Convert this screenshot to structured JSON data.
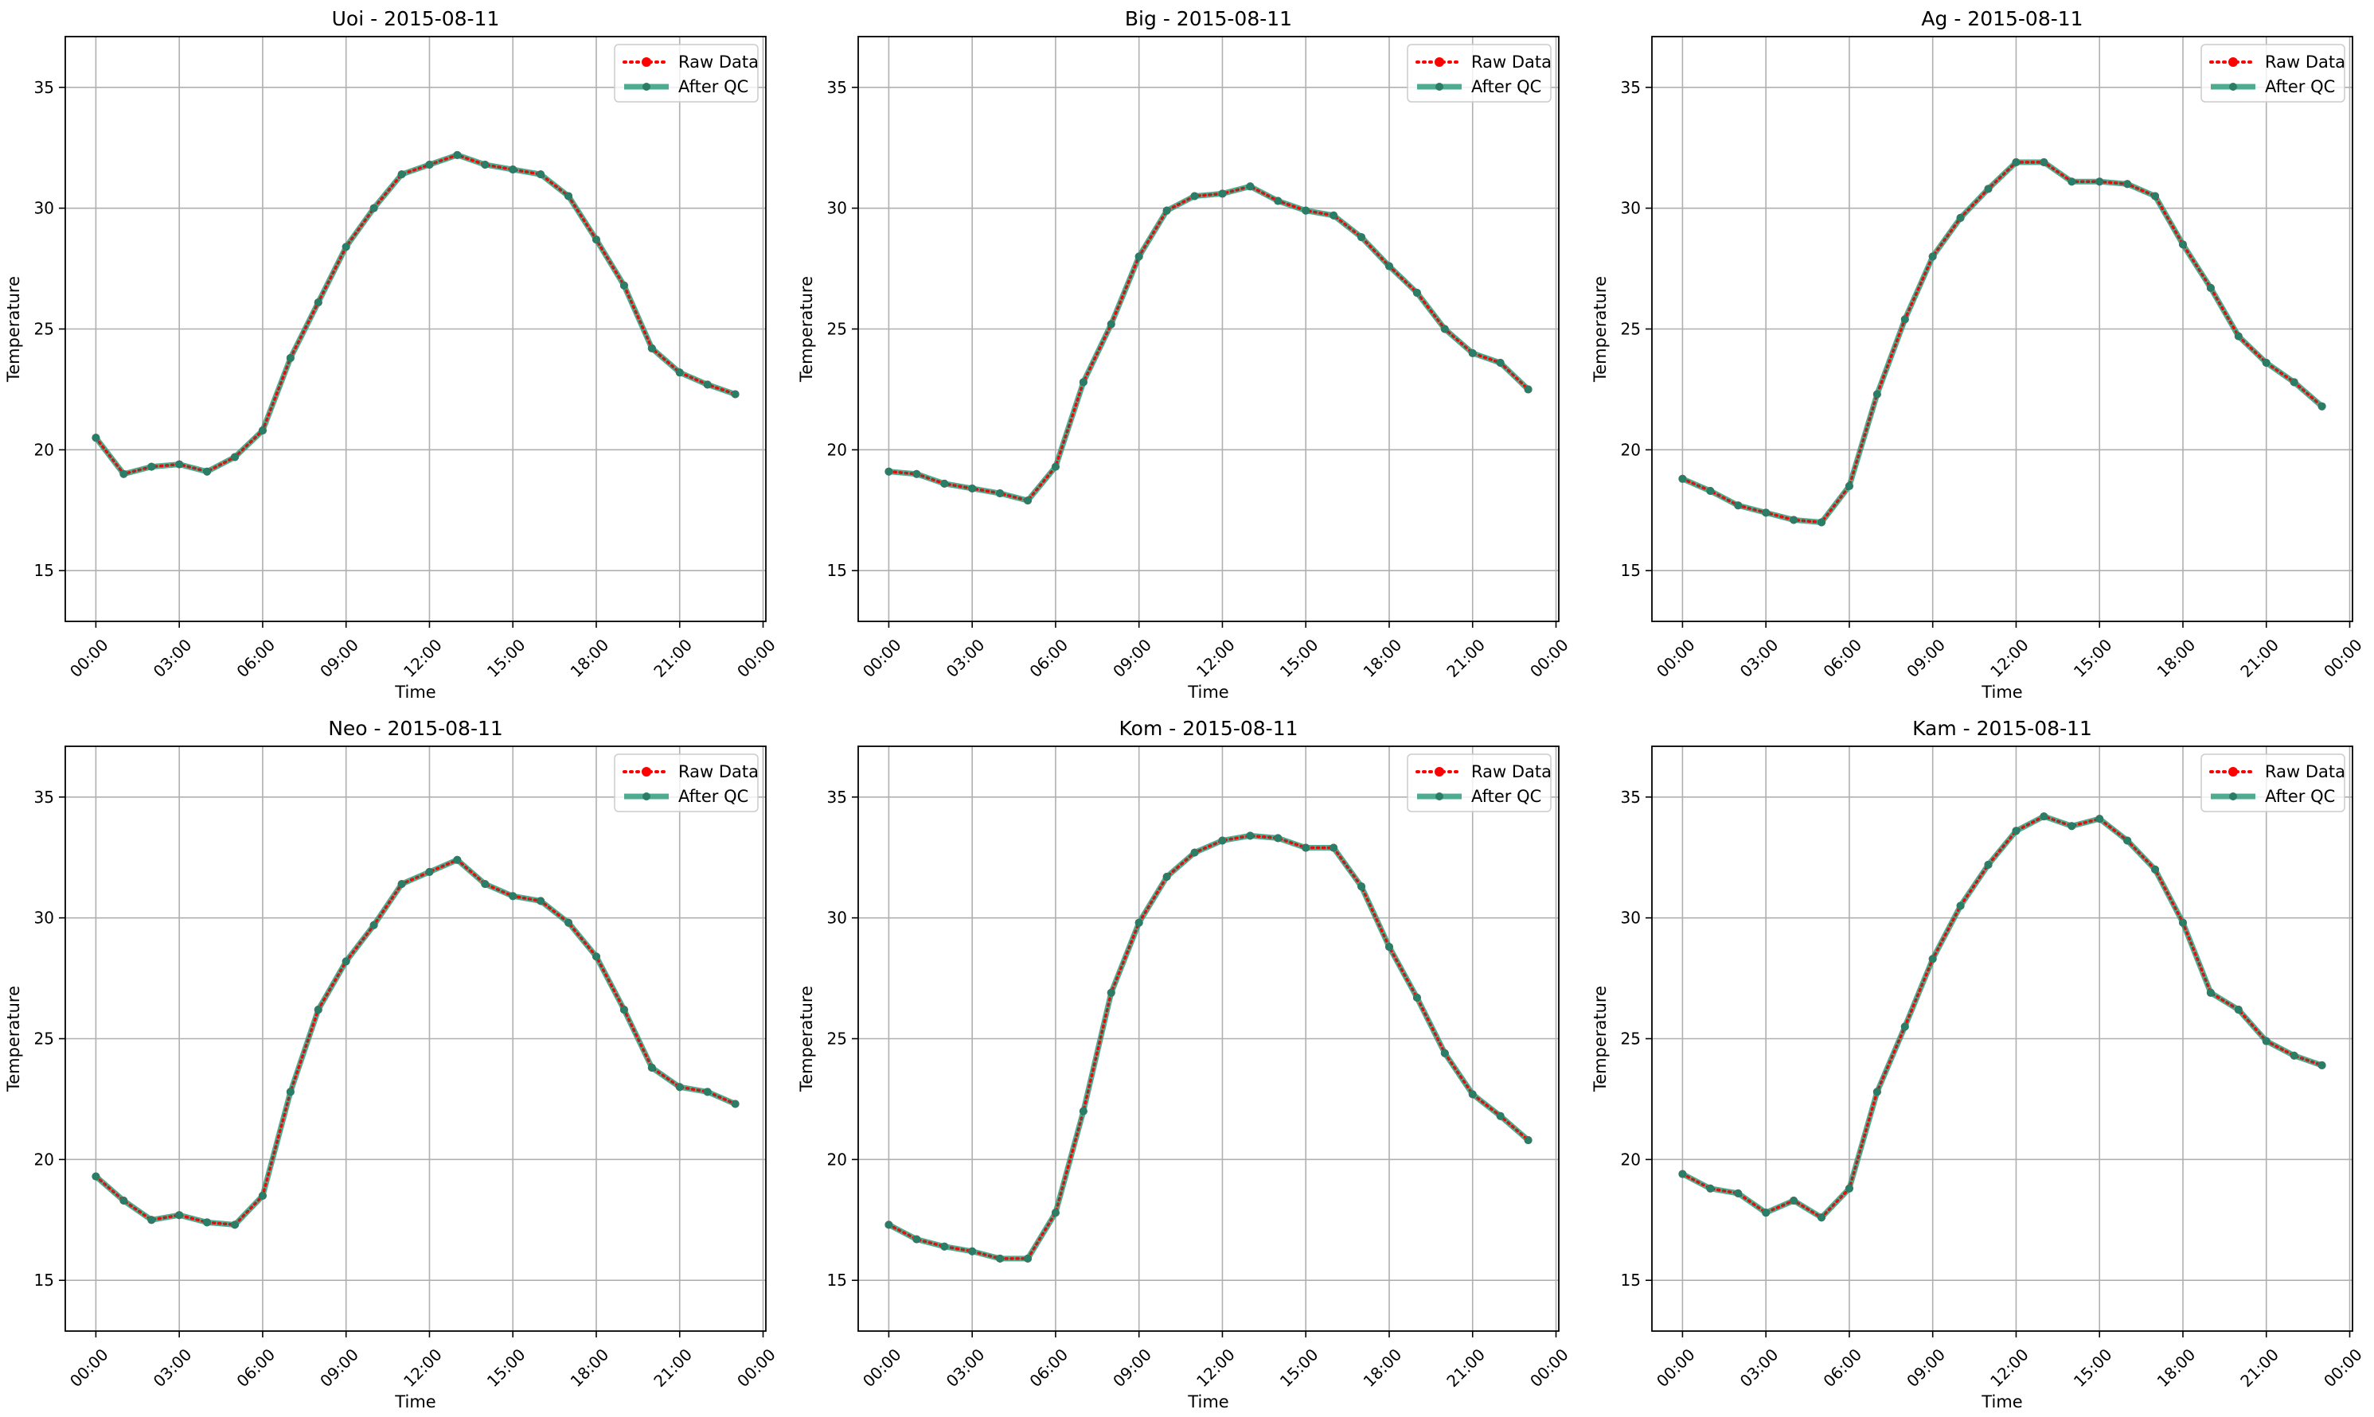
{
  "figure": {
    "background": "#ffffff"
  },
  "colors": {
    "raw": "#ff0000",
    "qc": "#2f9e7d",
    "grid": "#b0b0b0",
    "axis": "#000000"
  },
  "legend": {
    "placement": "top-right",
    "raw_label": "Raw Data",
    "qc_label": "After QC"
  },
  "chart_data": [
    {
      "type": "line",
      "title": "Uoi - 2015-08-11",
      "xlabel": "Time",
      "ylabel": "Temperature",
      "xlim": [
        -1.1,
        24.1
      ],
      "ylim": [
        12.9,
        37.1
      ],
      "x_ticks": [
        0,
        3,
        6,
        9,
        12,
        15,
        18,
        21,
        24
      ],
      "x_tick_labels": [
        "00:00",
        "03:00",
        "06:00",
        "09:00",
        "12:00",
        "15:00",
        "18:00",
        "21:00",
        "00:00"
      ],
      "y_ticks": [
        15,
        20,
        25,
        30,
        35
      ],
      "y_tick_labels": [
        "15",
        "20",
        "25",
        "30",
        "35"
      ],
      "grid": true,
      "x": [
        0,
        1,
        2,
        3,
        4,
        5,
        6,
        7,
        8,
        9,
        10,
        11,
        12,
        13,
        14,
        15,
        16,
        17,
        18,
        19,
        20,
        21,
        22,
        23
      ],
      "series": [
        {
          "name": "Raw Data",
          "values": [
            20.5,
            19.0,
            19.3,
            19.4,
            19.1,
            19.7,
            20.8,
            23.8,
            26.1,
            28.4,
            30.0,
            31.4,
            31.8,
            32.2,
            31.8,
            31.6,
            31.4,
            30.5,
            28.7,
            26.8,
            24.2,
            23.2,
            22.7,
            22.3
          ]
        },
        {
          "name": "After QC",
          "values": [
            20.5,
            19.0,
            19.3,
            19.4,
            19.1,
            19.7,
            20.8,
            23.8,
            26.1,
            28.4,
            30.0,
            31.4,
            31.8,
            32.2,
            31.8,
            31.6,
            31.4,
            30.5,
            28.7,
            26.8,
            24.2,
            23.2,
            22.7,
            22.3
          ]
        }
      ]
    },
    {
      "type": "line",
      "title": "Big - 2015-08-11",
      "xlabel": "Time",
      "ylabel": "Temperature",
      "xlim": [
        -1.1,
        24.1
      ],
      "ylim": [
        12.9,
        37.1
      ],
      "x_ticks": [
        0,
        3,
        6,
        9,
        12,
        15,
        18,
        21,
        24
      ],
      "x_tick_labels": [
        "00:00",
        "03:00",
        "06:00",
        "09:00",
        "12:00",
        "15:00",
        "18:00",
        "21:00",
        "00:00"
      ],
      "y_ticks": [
        15,
        20,
        25,
        30,
        35
      ],
      "y_tick_labels": [
        "15",
        "20",
        "25",
        "30",
        "35"
      ],
      "grid": true,
      "x": [
        0,
        1,
        2,
        3,
        4,
        5,
        6,
        7,
        8,
        9,
        10,
        11,
        12,
        13,
        14,
        15,
        16,
        17,
        18,
        19,
        20,
        21,
        22,
        23
      ],
      "series": [
        {
          "name": "Raw Data",
          "values": [
            19.1,
            19.0,
            18.6,
            18.4,
            18.2,
            17.9,
            19.3,
            22.8,
            25.2,
            28.0,
            29.9,
            30.5,
            30.6,
            30.9,
            30.3,
            29.9,
            29.7,
            28.8,
            27.6,
            26.5,
            25.0,
            24.0,
            23.6,
            22.5
          ]
        },
        {
          "name": "After QC",
          "values": [
            19.1,
            19.0,
            18.6,
            18.4,
            18.2,
            17.9,
            19.3,
            22.8,
            25.2,
            28.0,
            29.9,
            30.5,
            30.6,
            30.9,
            30.3,
            29.9,
            29.7,
            28.8,
            27.6,
            26.5,
            25.0,
            24.0,
            23.6,
            22.5
          ]
        }
      ]
    },
    {
      "type": "line",
      "title": "Ag - 2015-08-11",
      "xlabel": "Time",
      "ylabel": "Temperature",
      "xlim": [
        -1.1,
        24.1
      ],
      "ylim": [
        12.9,
        37.1
      ],
      "x_ticks": [
        0,
        3,
        6,
        9,
        12,
        15,
        18,
        21,
        24
      ],
      "x_tick_labels": [
        "00:00",
        "03:00",
        "06:00",
        "09:00",
        "12:00",
        "15:00",
        "18:00",
        "21:00",
        "00:00"
      ],
      "y_ticks": [
        15,
        20,
        25,
        30,
        35
      ],
      "y_tick_labels": [
        "15",
        "20",
        "25",
        "30",
        "35"
      ],
      "grid": true,
      "x": [
        0,
        1,
        2,
        3,
        4,
        5,
        6,
        7,
        8,
        9,
        10,
        11,
        12,
        13,
        14,
        15,
        16,
        17,
        18,
        19,
        20,
        21,
        22,
        23
      ],
      "series": [
        {
          "name": "Raw Data",
          "values": [
            18.8,
            18.3,
            17.7,
            17.4,
            17.1,
            17.0,
            18.5,
            22.3,
            25.4,
            28.0,
            29.6,
            30.8,
            31.9,
            31.9,
            31.1,
            31.1,
            31.0,
            30.5,
            28.5,
            26.7,
            24.7,
            23.6,
            22.8,
            21.8
          ]
        },
        {
          "name": "After QC",
          "values": [
            18.8,
            18.3,
            17.7,
            17.4,
            17.1,
            17.0,
            18.5,
            22.3,
            25.4,
            28.0,
            29.6,
            30.8,
            31.9,
            31.9,
            31.1,
            31.1,
            31.0,
            30.5,
            28.5,
            26.7,
            24.7,
            23.6,
            22.8,
            21.8
          ]
        }
      ]
    },
    {
      "type": "line",
      "title": "Neo - 2015-08-11",
      "xlabel": "Time",
      "ylabel": "Temperature",
      "xlim": [
        -1.1,
        24.1
      ],
      "ylim": [
        12.9,
        37.1
      ],
      "x_ticks": [
        0,
        3,
        6,
        9,
        12,
        15,
        18,
        21,
        24
      ],
      "x_tick_labels": [
        "00:00",
        "03:00",
        "06:00",
        "09:00",
        "12:00",
        "15:00",
        "18:00",
        "21:00",
        "00:00"
      ],
      "y_ticks": [
        15,
        20,
        25,
        30,
        35
      ],
      "y_tick_labels": [
        "15",
        "20",
        "25",
        "30",
        "35"
      ],
      "grid": true,
      "x": [
        0,
        1,
        2,
        3,
        4,
        5,
        6,
        7,
        8,
        9,
        10,
        11,
        12,
        13,
        14,
        15,
        16,
        17,
        18,
        19,
        20,
        21,
        22,
        23
      ],
      "series": [
        {
          "name": "Raw Data",
          "values": [
            19.3,
            18.3,
            17.5,
            17.7,
            17.4,
            17.3,
            18.5,
            22.8,
            26.2,
            28.2,
            29.7,
            31.4,
            31.9,
            32.4,
            31.4,
            30.9,
            30.7,
            29.8,
            28.4,
            26.2,
            23.8,
            23.0,
            22.8,
            22.3
          ]
        },
        {
          "name": "After QC",
          "values": [
            19.3,
            18.3,
            17.5,
            17.7,
            17.4,
            17.3,
            18.5,
            22.8,
            26.2,
            28.2,
            29.7,
            31.4,
            31.9,
            32.4,
            31.4,
            30.9,
            30.7,
            29.8,
            28.4,
            26.2,
            23.8,
            23.0,
            22.8,
            22.3
          ]
        }
      ]
    },
    {
      "type": "line",
      "title": "Kom - 2015-08-11",
      "xlabel": "Time",
      "ylabel": "Temperature",
      "xlim": [
        -1.1,
        24.1
      ],
      "ylim": [
        12.9,
        37.1
      ],
      "x_ticks": [
        0,
        3,
        6,
        9,
        12,
        15,
        18,
        21,
        24
      ],
      "x_tick_labels": [
        "00:00",
        "03:00",
        "06:00",
        "09:00",
        "12:00",
        "15:00",
        "18:00",
        "21:00",
        "00:00"
      ],
      "y_ticks": [
        15,
        20,
        25,
        30,
        35
      ],
      "y_tick_labels": [
        "15",
        "20",
        "25",
        "30",
        "35"
      ],
      "grid": true,
      "x": [
        0,
        1,
        2,
        3,
        4,
        5,
        6,
        7,
        8,
        9,
        10,
        11,
        12,
        13,
        14,
        15,
        16,
        17,
        18,
        19,
        20,
        21,
        22,
        23
      ],
      "series": [
        {
          "name": "Raw Data",
          "values": [
            17.3,
            16.7,
            16.4,
            16.2,
            15.9,
            15.9,
            17.8,
            22.0,
            26.9,
            29.8,
            31.7,
            32.7,
            33.2,
            33.4,
            33.3,
            32.9,
            32.9,
            31.3,
            28.8,
            26.7,
            24.4,
            22.7,
            21.8,
            20.8
          ]
        },
        {
          "name": "After QC",
          "values": [
            17.3,
            16.7,
            16.4,
            16.2,
            15.9,
            15.9,
            17.8,
            22.0,
            26.9,
            29.8,
            31.7,
            32.7,
            33.2,
            33.4,
            33.3,
            32.9,
            32.9,
            31.3,
            28.8,
            26.7,
            24.4,
            22.7,
            21.8,
            20.8
          ]
        }
      ]
    },
    {
      "type": "line",
      "title": "Kam - 2015-08-11",
      "xlabel": "Time",
      "ylabel": "Temperature",
      "xlim": [
        -1.1,
        24.1
      ],
      "ylim": [
        12.9,
        37.1
      ],
      "x_ticks": [
        0,
        3,
        6,
        9,
        12,
        15,
        18,
        21,
        24
      ],
      "x_tick_labels": [
        "00:00",
        "03:00",
        "06:00",
        "09:00",
        "12:00",
        "15:00",
        "18:00",
        "21:00",
        "00:00"
      ],
      "y_ticks": [
        15,
        20,
        25,
        30,
        35
      ],
      "y_tick_labels": [
        "15",
        "20",
        "25",
        "30",
        "35"
      ],
      "grid": true,
      "x": [
        0,
        1,
        2,
        3,
        4,
        5,
        6,
        7,
        8,
        9,
        10,
        11,
        12,
        13,
        14,
        15,
        16,
        17,
        18,
        19,
        20,
        21,
        22,
        23
      ],
      "series": [
        {
          "name": "Raw Data",
          "values": [
            19.4,
            18.8,
            18.6,
            17.8,
            18.3,
            17.6,
            18.8,
            22.8,
            25.5,
            28.3,
            30.5,
            32.2,
            33.6,
            34.2,
            33.8,
            34.1,
            33.2,
            32.0,
            29.8,
            26.9,
            26.2,
            24.9,
            24.3,
            23.9
          ]
        },
        {
          "name": "After QC",
          "values": [
            19.4,
            18.8,
            18.6,
            17.8,
            18.3,
            17.6,
            18.8,
            22.8,
            25.5,
            28.3,
            30.5,
            32.2,
            33.6,
            34.2,
            33.8,
            34.1,
            33.2,
            32.0,
            29.8,
            26.9,
            26.2,
            24.9,
            24.3,
            23.9
          ]
        }
      ]
    }
  ]
}
